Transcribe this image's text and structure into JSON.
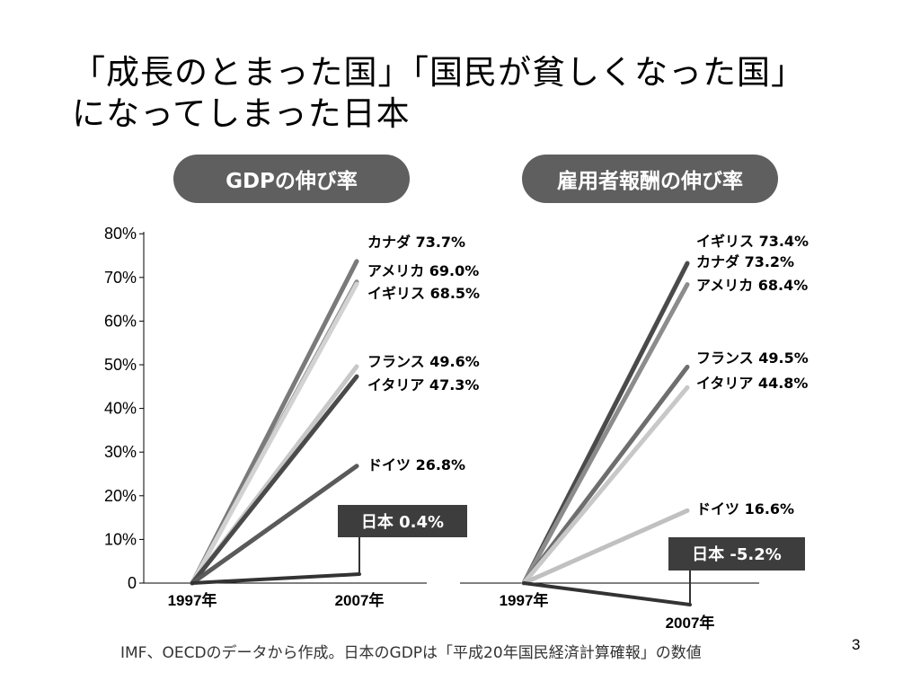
{
  "slide": {
    "title_line1": "「成長のとまった国」「国民が貧しくなった国」",
    "title_line2": "になってしまった日本",
    "source": "IMF、OECDのデータから作成。日本のGDPは「平成20年国民経済計算確報」の数値",
    "page_number": "3"
  },
  "chart_data": [
    {
      "type": "line",
      "title": "GDPの伸び率",
      "x": [
        "1997年",
        "2007年"
      ],
      "ylim": [
        0,
        80
      ],
      "yticks": [
        "0",
        "10%",
        "20%",
        "30%",
        "40%",
        "50%",
        "60%",
        "70%",
        "80%"
      ],
      "series": [
        {
          "name": "カナダ",
          "values": [
            0,
            73.7
          ],
          "label": "カナダ 73.7%",
          "color": "#7a7a7a"
        },
        {
          "name": "アメリカ",
          "values": [
            0,
            69.0
          ],
          "label": "アメリカ 69.0%",
          "color": "#8c8c8c"
        },
        {
          "name": "イギリス",
          "values": [
            0,
            68.5
          ],
          "label": "イギリス 68.5%",
          "color": "#d2d2d2"
        },
        {
          "name": "フランス",
          "values": [
            0,
            49.6
          ],
          "label": "フランス 49.6%",
          "color": "#c8c8c8"
        },
        {
          "name": "イタリア",
          "values": [
            0,
            47.3
          ],
          "label": "イタリア 47.3%",
          "color": "#4a4a4a"
        },
        {
          "name": "ドイツ",
          "values": [
            0,
            26.8
          ],
          "label": "ドイツ 26.8%",
          "color": "#5a5a5a"
        },
        {
          "name": "日本",
          "values": [
            0,
            0.4
          ],
          "label": "日本 0.4%",
          "color": "#333333"
        }
      ]
    },
    {
      "type": "line",
      "title": "雇用者報酬の伸び率",
      "x": [
        "1997年",
        "2007年"
      ],
      "ylim": [
        0,
        80
      ],
      "series": [
        {
          "name": "イギリス",
          "values": [
            0,
            73.4
          ],
          "label": "イギリス 73.4%",
          "color": "#d2d2d2"
        },
        {
          "name": "カナダ",
          "values": [
            0,
            73.2
          ],
          "label": "カナダ 73.2%",
          "color": "#4a4a4a"
        },
        {
          "name": "アメリカ",
          "values": [
            0,
            68.4
          ],
          "label": "アメリカ 68.4%",
          "color": "#8c8c8c"
        },
        {
          "name": "フランス",
          "values": [
            0,
            49.5
          ],
          "label": "フランス 49.5%",
          "color": "#6e6e6e"
        },
        {
          "name": "イタリア",
          "values": [
            0,
            44.8
          ],
          "label": "イタリア 44.8%",
          "color": "#c8c8c8"
        },
        {
          "name": "ドイツ",
          "values": [
            0,
            16.6
          ],
          "label": "ドイツ 16.6%",
          "color": "#c0c0c0"
        },
        {
          "name": "日本",
          "values": [
            0,
            -5.2
          ],
          "label": "日本 -5.2%",
          "color": "#333333"
        }
      ]
    }
  ]
}
